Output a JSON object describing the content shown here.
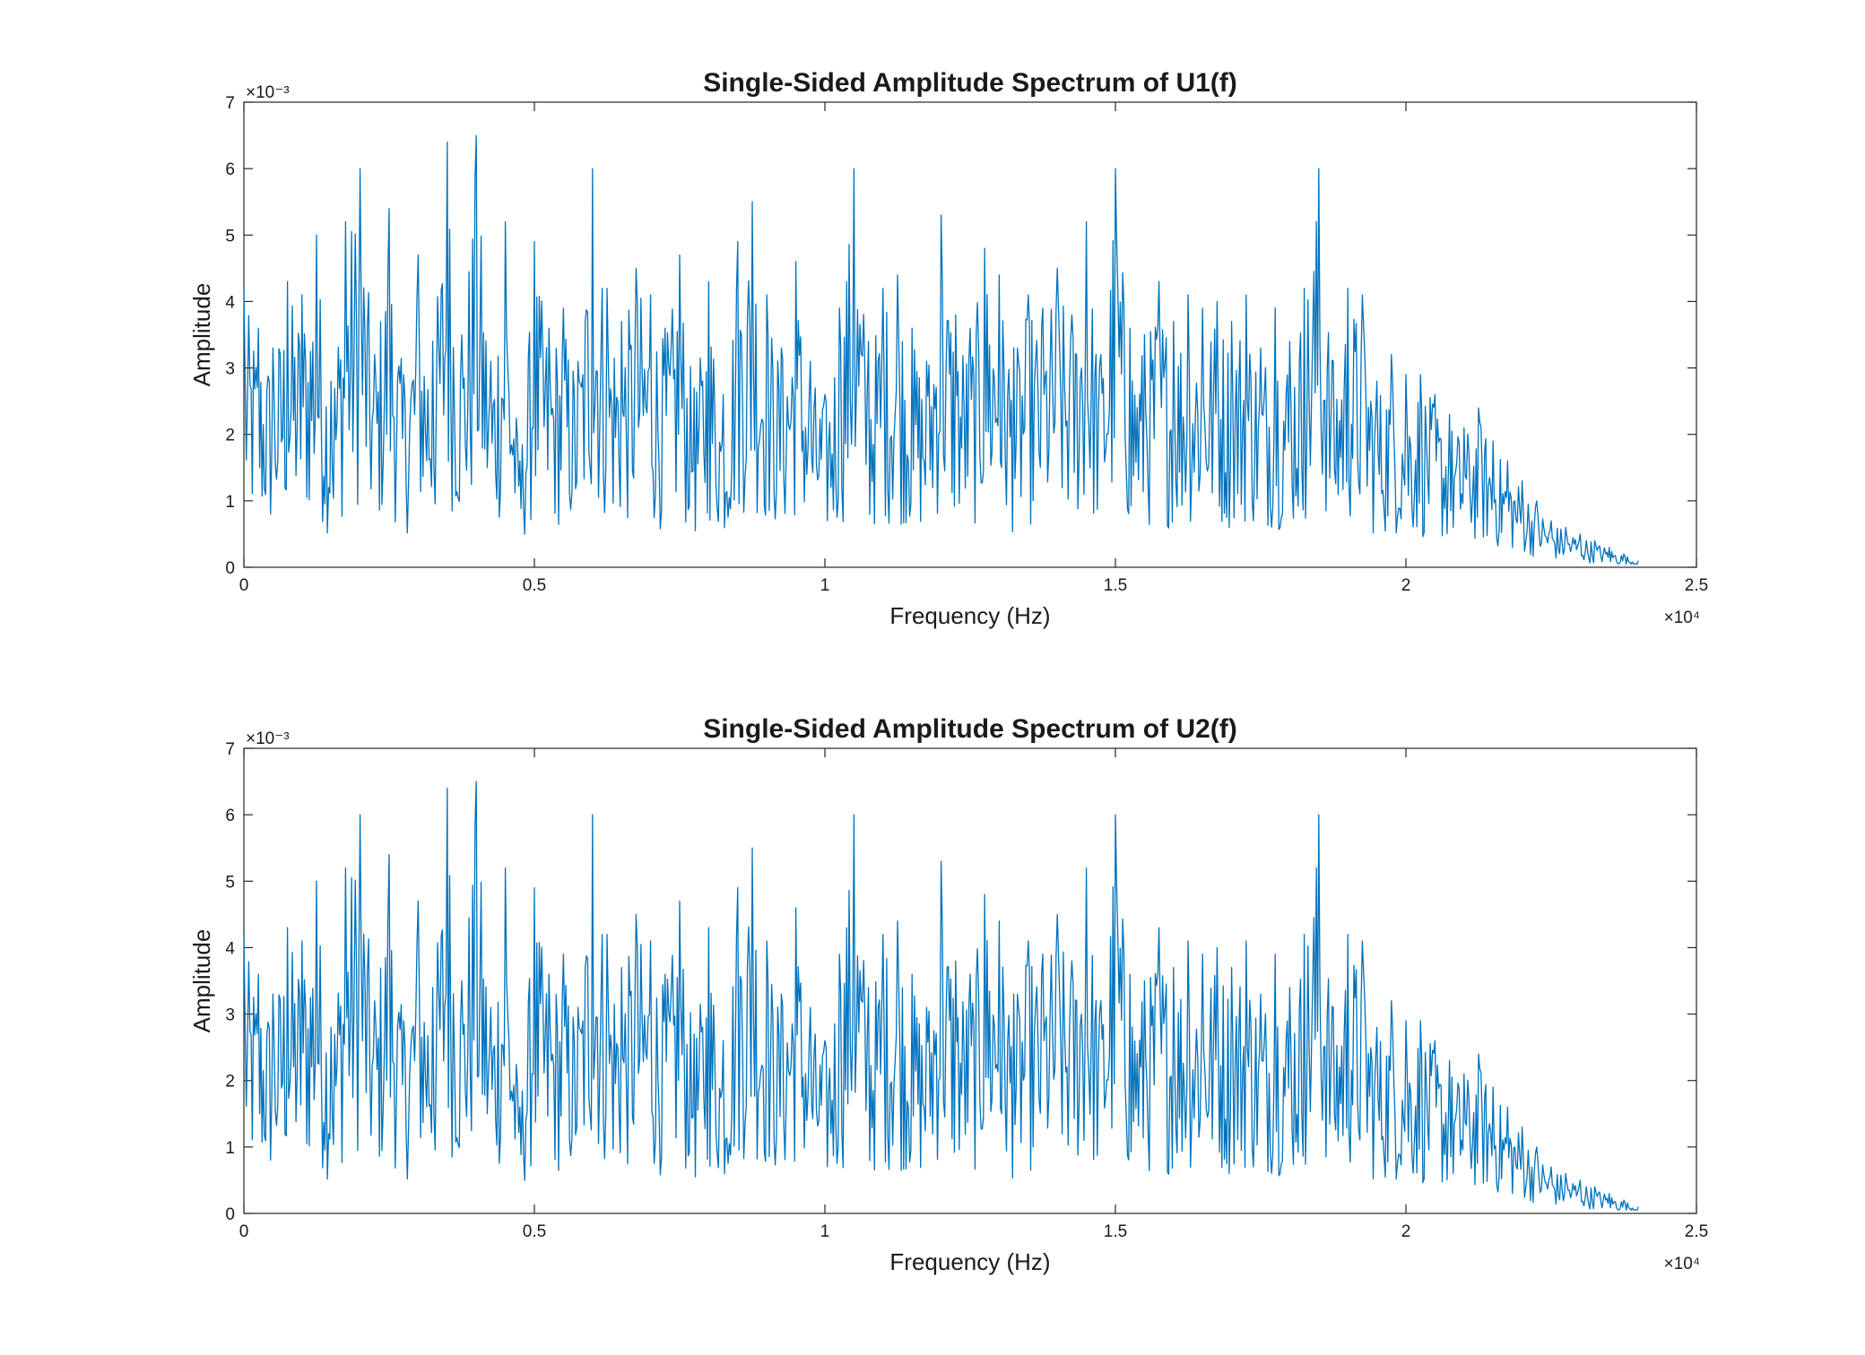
{
  "colors": {
    "series": "#0072BD",
    "axes": "#262626",
    "background": "#ffffff"
  },
  "chart_data": [
    {
      "type": "line",
      "title": "Single-Sided Amplitude Spectrum of U1(f)",
      "xlabel": "Frequency (Hz)",
      "ylabel": "Amplitude",
      "xlim": [
        0,
        25000
      ],
      "ylim": [
        0,
        0.007
      ],
      "x_ticks": [
        0,
        5000,
        10000,
        15000,
        20000,
        25000
      ],
      "x_tick_labels": [
        "0",
        "0.5",
        "1",
        "1.5",
        "2",
        "2.5"
      ],
      "y_ticks": [
        0,
        0.001,
        0.002,
        0.003,
        0.004,
        0.005,
        0.006,
        0.007
      ],
      "y_tick_labels": [
        "0",
        "1",
        "2",
        "3",
        "4",
        "5",
        "6",
        "7"
      ],
      "x_exponent_label": "×10⁴",
      "y_exponent_label": "×10⁻³",
      "grid": false,
      "legend": "none",
      "series": [
        {
          "x": [
            0,
            250,
            500,
            750,
            1000,
            1250,
            1500,
            1750,
            2000,
            2250,
            2500,
            2750,
            3000,
            3250,
            3500,
            3750,
            4000,
            4250,
            4500,
            4750,
            5000,
            5250,
            5500,
            5750,
            6000,
            6250,
            6500,
            6750,
            7000,
            7250,
            7500,
            7750,
            8000,
            8250,
            8500,
            8750,
            9000,
            9250,
            9500,
            9750,
            10000,
            10250,
            10500,
            10750,
            11000,
            11250,
            11500,
            11750,
            12000,
            12250,
            12500,
            12750,
            13000,
            13250,
            13500,
            13750,
            14000,
            14250,
            14500,
            14750,
            15000,
            15250,
            15500,
            15750,
            16000,
            16250,
            16500,
            16750,
            17000,
            17250,
            17500,
            17750,
            18000,
            18250,
            18500,
            18750,
            19000,
            19250,
            19500,
            19750,
            20000,
            20250,
            20500,
            20750,
            21000,
            21250,
            21500,
            21750,
            22000,
            22250,
            22500,
            22750,
            23000,
            23250,
            23500,
            23750,
            24000
          ],
          "y": [
            0.0042,
            0.0036,
            0.0033,
            0.0043,
            0.0041,
            0.005,
            0.0028,
            0.0052,
            0.006,
            0.0032,
            0.0054,
            0.0029,
            0.0047,
            0.0034,
            0.0064,
            0.0035,
            0.0065,
            0.0031,
            0.0052,
            0.0016,
            0.0049,
            0.0036,
            0.0039,
            0.0031,
            0.006,
            0.0042,
            0.0037,
            0.0045,
            0.0041,
            0.0036,
            0.0047,
            0.0027,
            0.0043,
            0.0026,
            0.0049,
            0.0055,
            0.0041,
            0.0033,
            0.0046,
            0.0031,
            0.0026,
            0.0039,
            0.006,
            0.0034,
            0.0042,
            0.0044,
            0.0036,
            0.0031,
            0.0053,
            0.0038,
            0.0036,
            0.0048,
            0.0044,
            0.0033,
            0.0041,
            0.0039,
            0.0045,
            0.0038,
            0.0052,
            0.0032,
            0.006,
            0.0036,
            0.0035,
            0.0043,
            0.0037,
            0.0041,
            0.0039,
            0.004,
            0.0037,
            0.0041,
            0.0033,
            0.0039,
            0.0034,
            0.0042,
            0.006,
            0.0031,
            0.0042,
            0.0041,
            0.0028,
            0.0032,
            0.0029,
            0.0029,
            0.0026,
            0.0023,
            0.0021,
            0.0024,
            0.0019,
            0.0016,
            0.0013,
            0.001,
            0.0007,
            0.0006,
            0.0005,
            0.0004,
            0.0003,
            0.0002,
            0.0001
          ]
        }
      ]
    },
    {
      "type": "line",
      "title": "Single-Sided Amplitude Spectrum of U2(f)",
      "xlabel": "Frequency (Hz)",
      "ylabel": "Amplitude",
      "xlim": [
        0,
        25000
      ],
      "ylim": [
        0,
        0.007
      ],
      "x_ticks": [
        0,
        5000,
        10000,
        15000,
        20000,
        25000
      ],
      "x_tick_labels": [
        "0",
        "0.5",
        "1",
        "1.5",
        "2",
        "2.5"
      ],
      "y_ticks": [
        0,
        0.001,
        0.002,
        0.003,
        0.004,
        0.005,
        0.006,
        0.007
      ],
      "y_tick_labels": [
        "0",
        "1",
        "2",
        "3",
        "4",
        "5",
        "6",
        "7"
      ],
      "x_exponent_label": "×10⁴",
      "y_exponent_label": "×10⁻³",
      "grid": false,
      "legend": "none",
      "series": [
        {
          "x": [
            0,
            250,
            500,
            750,
            1000,
            1250,
            1500,
            1750,
            2000,
            2250,
            2500,
            2750,
            3000,
            3250,
            3500,
            3750,
            4000,
            4250,
            4500,
            4750,
            5000,
            5250,
            5500,
            5750,
            6000,
            6250,
            6500,
            6750,
            7000,
            7250,
            7500,
            7750,
            8000,
            8250,
            8500,
            8750,
            9000,
            9250,
            9500,
            9750,
            10000,
            10250,
            10500,
            10750,
            11000,
            11250,
            11500,
            11750,
            12000,
            12250,
            12500,
            12750,
            13000,
            13250,
            13500,
            13750,
            14000,
            14250,
            14500,
            14750,
            15000,
            15250,
            15500,
            15750,
            16000,
            16250,
            16500,
            16750,
            17000,
            17250,
            17500,
            17750,
            18000,
            18250,
            18500,
            18750,
            19000,
            19250,
            19500,
            19750,
            20000,
            20250,
            20500,
            20750,
            21000,
            21250,
            21500,
            21750,
            22000,
            22250,
            22500,
            22750,
            23000,
            23250,
            23500,
            23750,
            24000
          ],
          "y": [
            0.0042,
            0.0036,
            0.0033,
            0.0043,
            0.0041,
            0.005,
            0.0028,
            0.0052,
            0.006,
            0.0032,
            0.0054,
            0.0029,
            0.0047,
            0.0034,
            0.0064,
            0.0035,
            0.0065,
            0.0031,
            0.0052,
            0.0016,
            0.0049,
            0.0036,
            0.0039,
            0.0031,
            0.006,
            0.0042,
            0.0037,
            0.0045,
            0.0041,
            0.0036,
            0.0047,
            0.0027,
            0.0043,
            0.0026,
            0.0049,
            0.0055,
            0.0041,
            0.0033,
            0.0046,
            0.0031,
            0.0026,
            0.0039,
            0.006,
            0.0034,
            0.0042,
            0.0044,
            0.0036,
            0.0031,
            0.0053,
            0.0038,
            0.0036,
            0.0048,
            0.0044,
            0.0033,
            0.0041,
            0.0039,
            0.0045,
            0.0038,
            0.0052,
            0.0032,
            0.006,
            0.0036,
            0.0035,
            0.0043,
            0.0037,
            0.0041,
            0.0039,
            0.004,
            0.0037,
            0.0041,
            0.0033,
            0.0039,
            0.0034,
            0.0042,
            0.006,
            0.0031,
            0.0042,
            0.0041,
            0.0028,
            0.0032,
            0.0029,
            0.0029,
            0.0026,
            0.0023,
            0.0021,
            0.0024,
            0.0019,
            0.0016,
            0.0013,
            0.001,
            0.0007,
            0.0006,
            0.0005,
            0.0004,
            0.0003,
            0.0002,
            0.0001
          ]
        }
      ]
    }
  ]
}
